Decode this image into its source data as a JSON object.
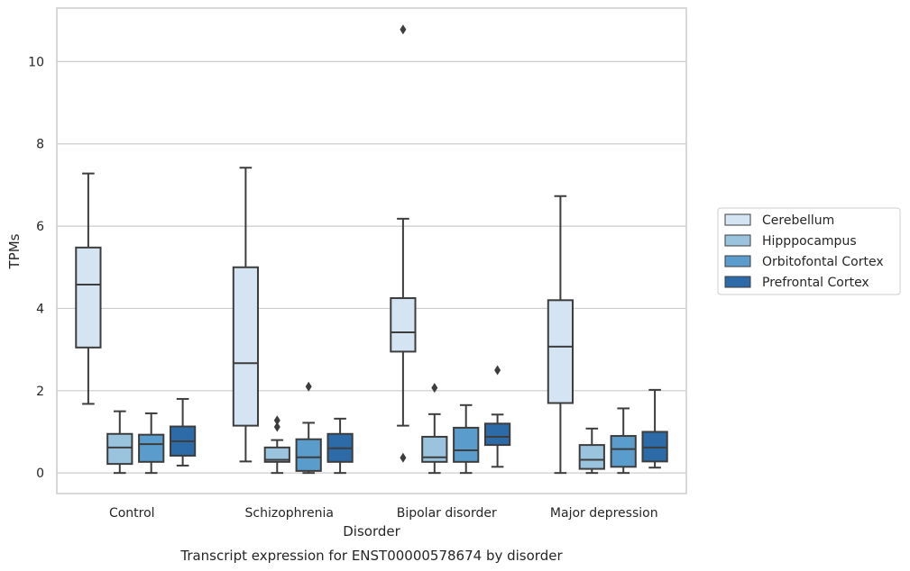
{
  "chart_data": {
    "type": "box",
    "title": "",
    "caption": "Transcript expression for ENST00000578674 by disorder",
    "xlabel": "Disorder",
    "ylabel": "TPMs",
    "ylim": [
      -0.5,
      11.3
    ],
    "yticks": [
      0,
      2,
      4,
      6,
      8,
      10
    ],
    "grid": "horizontal",
    "legend_position": "right",
    "categories": [
      "Control",
      "Schizophrenia",
      "Bipolar disorder",
      "Major depression"
    ],
    "series": [
      {
        "name": "Cerebellum",
        "color": "#d4e4f2",
        "boxes": [
          {
            "whislo": 1.68,
            "q1": 3.05,
            "med": 4.58,
            "q3": 5.48,
            "whishi": 7.28,
            "fliers": []
          },
          {
            "whislo": 0.28,
            "q1": 1.15,
            "med": 2.67,
            "q3": 5.0,
            "whishi": 7.42,
            "fliers": []
          },
          {
            "whislo": 1.15,
            "q1": 2.95,
            "med": 3.42,
            "q3": 4.25,
            "whishi": 6.18,
            "fliers": [
              10.78,
              0.37
            ]
          },
          {
            "whislo": 0.0,
            "q1": 1.7,
            "med": 3.07,
            "q3": 4.2,
            "whishi": 6.73,
            "fliers": []
          }
        ]
      },
      {
        "name": "Hipppocampus",
        "color": "#9ac4de",
        "boxes": [
          {
            "whislo": 0.0,
            "q1": 0.22,
            "med": 0.62,
            "q3": 0.95,
            "whishi": 1.5,
            "fliers": []
          },
          {
            "whislo": 0.0,
            "q1": 0.27,
            "med": 0.32,
            "q3": 0.62,
            "whishi": 0.8,
            "fliers": [
              1.12,
              1.28
            ]
          },
          {
            "whislo": 0.0,
            "q1": 0.27,
            "med": 0.38,
            "q3": 0.88,
            "whishi": 1.43,
            "fliers": [
              2.07
            ]
          },
          {
            "whislo": 0.0,
            "q1": 0.1,
            "med": 0.32,
            "q3": 0.68,
            "whishi": 1.08,
            "fliers": []
          }
        ]
      },
      {
        "name": "Orbitofontal Cortex",
        "color": "#5a9ccc",
        "boxes": [
          {
            "whislo": 0.0,
            "q1": 0.27,
            "med": 0.7,
            "q3": 0.93,
            "whishi": 1.45,
            "fliers": []
          },
          {
            "whislo": 0.0,
            "q1": 0.05,
            "med": 0.38,
            "q3": 0.82,
            "whishi": 1.22,
            "fliers": [
              2.1
            ]
          },
          {
            "whislo": 0.0,
            "q1": 0.27,
            "med": 0.55,
            "q3": 1.1,
            "whishi": 1.65,
            "fliers": []
          },
          {
            "whislo": 0.0,
            "q1": 0.15,
            "med": 0.58,
            "q3": 0.9,
            "whishi": 1.57,
            "fliers": []
          }
        ]
      },
      {
        "name": "Prefrontal Cortex",
        "color": "#2c6aa8",
        "boxes": [
          {
            "whislo": 0.18,
            "q1": 0.42,
            "med": 0.77,
            "q3": 1.13,
            "whishi": 1.8,
            "fliers": []
          },
          {
            "whislo": 0.0,
            "q1": 0.27,
            "med": 0.6,
            "q3": 0.95,
            "whishi": 1.32,
            "fliers": []
          },
          {
            "whislo": 0.15,
            "q1": 0.68,
            "med": 0.88,
            "q3": 1.2,
            "whishi": 1.42,
            "fliers": [
              2.5
            ]
          },
          {
            "whislo": 0.13,
            "q1": 0.28,
            "med": 0.62,
            "q3": 1.0,
            "whishi": 2.02,
            "fliers": []
          }
        ]
      }
    ]
  }
}
